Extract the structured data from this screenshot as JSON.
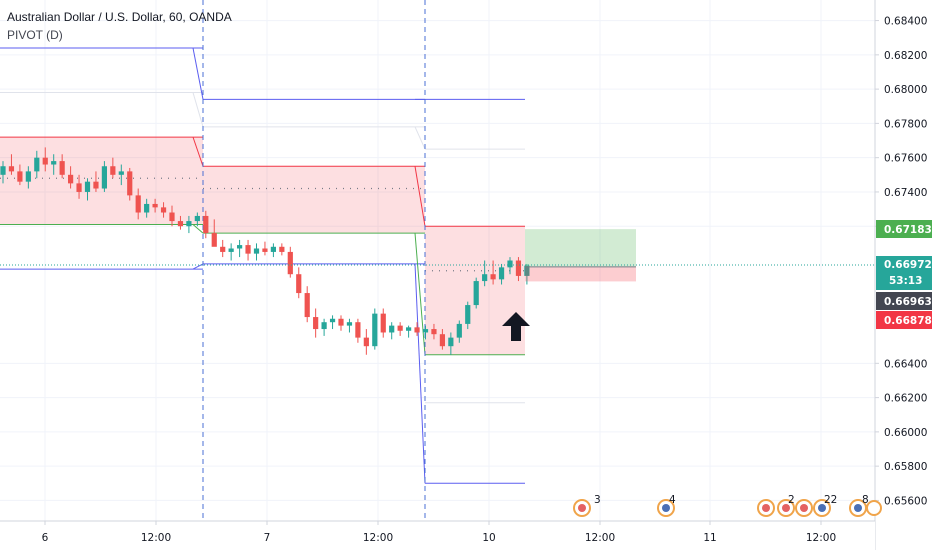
{
  "legend": {
    "title": "Australian Dollar / U.S. Dollar, 60, OANDA",
    "indicator": "PIVOT (D)"
  },
  "colors": {
    "up": "#26a69a",
    "down": "#ef5350",
    "pivot_red": "#f23645",
    "pivot_green": "#4caf50",
    "pivot_blue": "#5b5ef0",
    "zone_red": "rgba(242,54,69,0.16)",
    "zone_green": "rgba(76,175,80,0.25)"
  },
  "axis": {
    "price_ticks": [
      "0.68400",
      "0.68200",
      "0.68000",
      "0.67800",
      "0.67600",
      "0.67400",
      "0.67200",
      "0.66400",
      "0.66200",
      "0.66000",
      "0.65800",
      "0.65600"
    ],
    "time_ticks": [
      "6",
      "12:00",
      "7",
      "12:00",
      "10",
      "12:00",
      "11",
      "12:00"
    ]
  },
  "price_labels": {
    "green_level": "0.67183",
    "current": "0.66972",
    "countdown": "53:13",
    "grey_level": "0.66963",
    "red_level": "0.66878"
  },
  "events": {
    "e1": "3",
    "e2": "4",
    "e3": "2",
    "e4": "22",
    "e5": "8"
  },
  "chart_data": {
    "type": "candlestick",
    "ylim": [
      0.6548,
      0.6852
    ],
    "pivots": [
      {
        "x_start": 0,
        "x_end": 203,
        "r1": 0.6824,
        "r2": 0.6798,
        "upper": 0.6772,
        "pivot": 0.6748,
        "lower": 0.6721,
        "s1": 0.6695,
        "sd": 0.6695
      },
      {
        "x_start": 203,
        "x_end": 425,
        "r1": 0.6794,
        "r2": 0.6778,
        "upper": 0.6755,
        "pivot": 0.6742,
        "lower": 0.6716,
        "s1": 0.6698,
        "sd": 0.6698
      },
      {
        "x_start": 425,
        "x_end": 525,
        "r1": 0.6794,
        "r2": 0.6765,
        "upper": 0.672,
        "pivot": 0.6694,
        "lower": 0.6645,
        "s1": 0.6615,
        "sd": 0.657
      }
    ],
    "position": {
      "entry": 0.66963,
      "target": 0.67183,
      "stop": 0.66878
    },
    "candles": [
      [
        0.675,
        0.6758,
        0.6745,
        0.6755
      ],
      [
        0.6755,
        0.6762,
        0.675,
        0.6752
      ],
      [
        0.6752,
        0.6756,
        0.6744,
        0.6746
      ],
      [
        0.6746,
        0.6755,
        0.6742,
        0.6752
      ],
      [
        0.6752,
        0.6764,
        0.6748,
        0.676
      ],
      [
        0.676,
        0.6766,
        0.6752,
        0.6756
      ],
      [
        0.6756,
        0.6762,
        0.675,
        0.6758
      ],
      [
        0.6758,
        0.6762,
        0.6748,
        0.675
      ],
      [
        0.675,
        0.6755,
        0.6742,
        0.6745
      ],
      [
        0.6745,
        0.675,
        0.6736,
        0.674
      ],
      [
        0.674,
        0.6748,
        0.6735,
        0.6746
      ],
      [
        0.6746,
        0.6752,
        0.674,
        0.6742
      ],
      [
        0.6742,
        0.6758,
        0.674,
        0.6755
      ],
      [
        0.6755,
        0.676,
        0.6748,
        0.675
      ],
      [
        0.675,
        0.6756,
        0.6744,
        0.6752
      ],
      [
        0.6752,
        0.6754,
        0.6735,
        0.6738
      ],
      [
        0.6738,
        0.6742,
        0.6724,
        0.6728
      ],
      [
        0.6728,
        0.6736,
        0.6725,
        0.6733
      ],
      [
        0.6733,
        0.6736,
        0.6728,
        0.6731
      ],
      [
        0.6731,
        0.6734,
        0.6725,
        0.6728
      ],
      [
        0.6728,
        0.6732,
        0.672,
        0.6723
      ],
      [
        0.6723,
        0.6726,
        0.6718,
        0.672
      ],
      [
        0.672,
        0.6726,
        0.6716,
        0.6723
      ],
      [
        0.6723,
        0.6728,
        0.672,
        0.6726
      ],
      [
        0.6726,
        0.6729,
        0.6713,
        0.6716
      ],
      [
        0.6716,
        0.6724,
        0.671,
        0.6708
      ],
      [
        0.6708,
        0.6712,
        0.6702,
        0.6705
      ],
      [
        0.6705,
        0.671,
        0.67,
        0.6707
      ],
      [
        0.6707,
        0.6712,
        0.6702,
        0.6709
      ],
      [
        0.6709,
        0.6712,
        0.67,
        0.6704
      ],
      [
        0.6704,
        0.671,
        0.67,
        0.6707
      ],
      [
        0.6707,
        0.6711,
        0.6703,
        0.6705
      ],
      [
        0.6705,
        0.671,
        0.6702,
        0.6708
      ],
      [
        0.6708,
        0.671,
        0.6703,
        0.6705
      ],
      [
        0.6705,
        0.6708,
        0.669,
        0.6692
      ],
      [
        0.6692,
        0.6696,
        0.6678,
        0.6681
      ],
      [
        0.6681,
        0.6685,
        0.6664,
        0.6667
      ],
      [
        0.6667,
        0.6672,
        0.6655,
        0.666
      ],
      [
        0.666,
        0.6666,
        0.6656,
        0.6664
      ],
      [
        0.6664,
        0.6668,
        0.666,
        0.6666
      ],
      [
        0.6666,
        0.6668,
        0.6659,
        0.6662
      ],
      [
        0.6662,
        0.6666,
        0.6658,
        0.6664
      ],
      [
        0.6664,
        0.6666,
        0.6652,
        0.6655
      ],
      [
        0.6655,
        0.666,
        0.6645,
        0.665
      ],
      [
        0.665,
        0.6672,
        0.6648,
        0.6669
      ],
      [
        0.6669,
        0.6672,
        0.6655,
        0.6658
      ],
      [
        0.6658,
        0.6664,
        0.6654,
        0.6662
      ],
      [
        0.6662,
        0.6664,
        0.6656,
        0.6659
      ],
      [
        0.6659,
        0.6662,
        0.6655,
        0.6661
      ],
      [
        0.6661,
        0.6664,
        0.6656,
        0.6658
      ],
      [
        0.6658,
        0.6662,
        0.6654,
        0.666
      ],
      [
        0.666,
        0.6663,
        0.6654,
        0.6657
      ],
      [
        0.6657,
        0.666,
        0.6648,
        0.665
      ],
      [
        0.665,
        0.6658,
        0.6645,
        0.6655
      ],
      [
        0.6655,
        0.6665,
        0.6652,
        0.6663
      ],
      [
        0.6663,
        0.6676,
        0.666,
        0.6674
      ],
      [
        0.6674,
        0.669,
        0.6672,
        0.6688
      ],
      [
        0.6688,
        0.67,
        0.6685,
        0.6692
      ],
      [
        0.6692,
        0.67,
        0.6686,
        0.6689
      ],
      [
        0.6689,
        0.6698,
        0.6686,
        0.6696
      ],
      [
        0.6696,
        0.6702,
        0.6692,
        0.67
      ],
      [
        0.67,
        0.6702,
        0.6688,
        0.6691
      ],
      [
        0.6691,
        0.6698,
        0.6686,
        0.6697
      ]
    ]
  }
}
